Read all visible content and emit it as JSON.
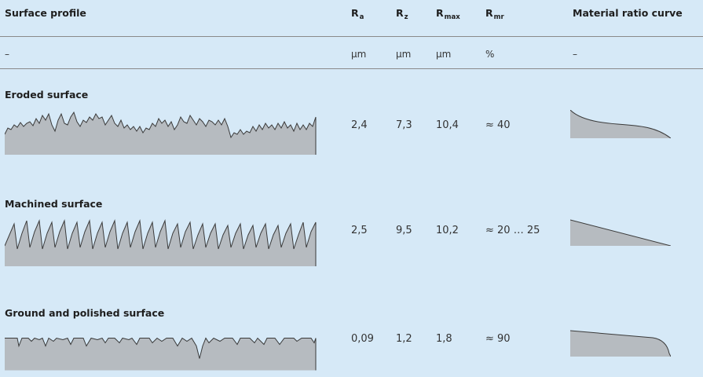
{
  "table": {
    "headers": {
      "profile": "Surface profile",
      "ra": {
        "base": "R",
        "sub": "a"
      },
      "rz": {
        "base": "R",
        "sub": "z"
      },
      "rmax": {
        "base": "R",
        "sub": "max"
      },
      "rmr": {
        "base": "R",
        "sub": "mr"
      },
      "curve": "Material ratio curve"
    },
    "units": {
      "profile": "–",
      "ra": "µm",
      "rz": "µm",
      "rmax": "µm",
      "rmr": "%",
      "curve": "–"
    },
    "rows": [
      {
        "name": "Eroded surface",
        "ra": "2,4",
        "rz": "7,3",
        "rmax": "10,4",
        "rmr": "≈ 40"
      },
      {
        "name": "Machined surface",
        "ra": "2,5",
        "rz": "9,5",
        "rmax": "10,2",
        "rmr": "≈ 20 … 25"
      },
      {
        "name": "Ground and polished surface",
        "ra": "0,09",
        "rz": "1,2",
        "rmax": "1,8",
        "rmr": "≈ 90"
      }
    ]
  },
  "colors": {
    "background": "#d6e9f7",
    "profile_fill": "#b6bbc0",
    "profile_stroke": "#3a3a3a",
    "rule": "#8a8a8a"
  }
}
